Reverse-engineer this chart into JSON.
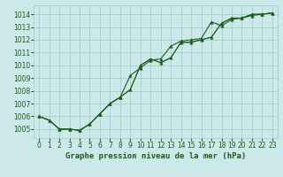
{
  "title": "Graphe pression niveau de la mer (hPa)",
  "bg_color": "#cce8e8",
  "grid_color": "#99cccc",
  "line_color": "#1a5c1a",
  "xlim": [
    -0.5,
    23.5
  ],
  "ylim": [
    1004.3,
    1014.7
  ],
  "xticks": [
    0,
    1,
    2,
    3,
    4,
    5,
    6,
    7,
    8,
    9,
    10,
    11,
    12,
    13,
    14,
    15,
    16,
    17,
    18,
    19,
    20,
    21,
    22,
    23
  ],
  "yticks": [
    1005,
    1006,
    1007,
    1008,
    1009,
    1010,
    1011,
    1012,
    1013,
    1014
  ],
  "line1_x": [
    0,
    1,
    2,
    3,
    4,
    5,
    6,
    7,
    8,
    9,
    10,
    11,
    12,
    13,
    14,
    15,
    16,
    17,
    18,
    19,
    20,
    21,
    22,
    23
  ],
  "line1_y": [
    1006.0,
    1005.7,
    1005.0,
    1005.0,
    1004.9,
    1005.4,
    1006.2,
    1007.0,
    1007.5,
    1008.1,
    1010.0,
    1010.5,
    1010.2,
    1010.6,
    1011.8,
    1011.8,
    1012.0,
    1012.2,
    1013.3,
    1013.7,
    1013.7,
    1014.0,
    1014.0,
    1014.1
  ],
  "line2_x": [
    0,
    1,
    2,
    3,
    4,
    5,
    6,
    7,
    8,
    9,
    10,
    11,
    12,
    13,
    14,
    15,
    16,
    17,
    18,
    19,
    20,
    21,
    22,
    23
  ],
  "line2_y": [
    1006.0,
    1005.7,
    1005.0,
    1005.0,
    1004.9,
    1005.4,
    1006.2,
    1007.0,
    1007.5,
    1009.2,
    1009.8,
    1010.4,
    1010.5,
    1011.5,
    1011.9,
    1012.0,
    1012.1,
    1013.4,
    1013.1,
    1013.6,
    1013.7,
    1013.9,
    1014.0,
    1014.1
  ],
  "line3_x": [
    0,
    1,
    2,
    3,
    4,
    5,
    6,
    7,
    8,
    9,
    10,
    11,
    12,
    13,
    14,
    15,
    16,
    17,
    18,
    19,
    20,
    21,
    22,
    23
  ],
  "line3_y": [
    1006.0,
    1005.7,
    1005.0,
    1005.0,
    1004.9,
    1005.4,
    1006.2,
    1007.0,
    1007.5,
    1008.1,
    1010.0,
    1010.5,
    1010.2,
    1010.6,
    1011.8,
    1011.8,
    1012.0,
    1012.2,
    1013.3,
    1013.7,
    1013.7,
    1014.0,
    1014.0,
    1014.1
  ],
  "tick_fontsize": 5.5,
  "xlabel_fontsize": 6.5
}
